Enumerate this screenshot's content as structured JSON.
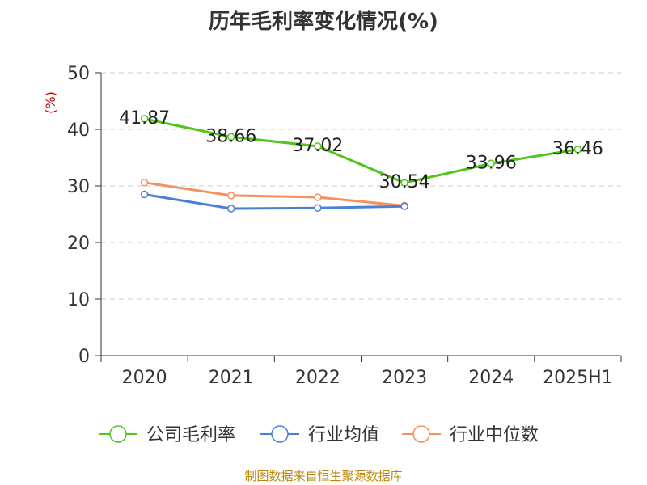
{
  "chart_data": {
    "type": "line",
    "title": "历年毛利率变化情况(%)",
    "ylabel": "(%)",
    "xlabel": "",
    "categories": [
      "2020",
      "2021",
      "2022",
      "2023",
      "2024",
      "2025H1"
    ],
    "ylim": [
      0,
      50
    ],
    "yticks": [
      0,
      10,
      20,
      30,
      40,
      50
    ],
    "grid": true,
    "legend_position": "bottom",
    "series": [
      {
        "name": "公司毛利率",
        "color": "#52c41a",
        "values": [
          41.87,
          38.66,
          37.02,
          30.54,
          33.96,
          36.46
        ],
        "labels": [
          "41.87",
          "38.66",
          "37.02",
          "30.54",
          "33.96",
          "36.46"
        ]
      },
      {
        "name": "行业均值",
        "color": "#4a7fd8",
        "values": [
          28.5,
          26.0,
          26.1,
          26.4,
          null,
          null
        ]
      },
      {
        "name": "行业中位数",
        "color": "#f7905f",
        "values": [
          30.6,
          28.3,
          28.0,
          26.5,
          null,
          null
        ]
      }
    ]
  },
  "footer": {
    "source": "制图数据来自恒生聚源数据库"
  }
}
